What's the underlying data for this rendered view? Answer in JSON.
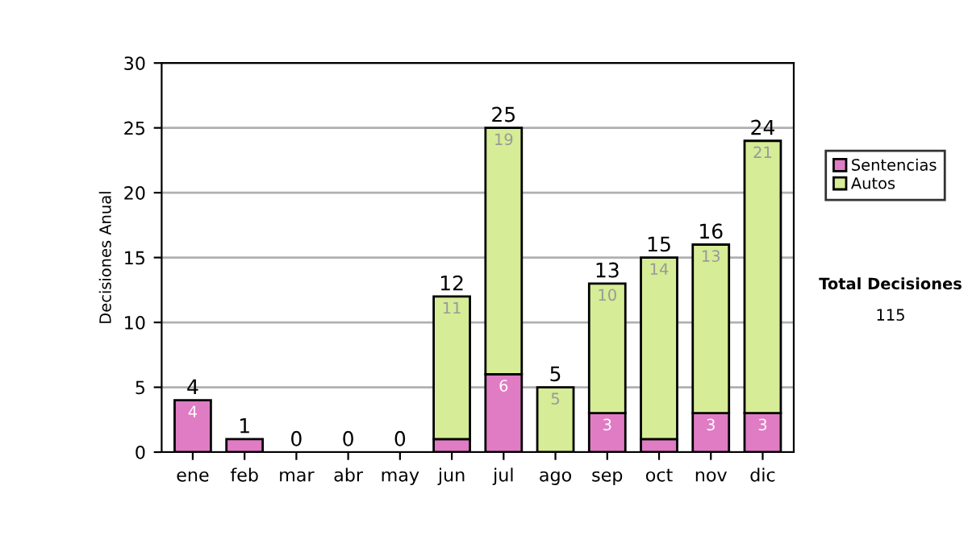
{
  "chart_data": {
    "type": "bar",
    "stacked": true,
    "ylabel": "Decisiones Anual",
    "categories": [
      "ene",
      "feb",
      "mar",
      "abr",
      "may",
      "jun",
      "jul",
      "ago",
      "sep",
      "oct",
      "nov",
      "dic"
    ],
    "series": [
      {
        "name": "Sentencias",
        "color": "#e07cc4",
        "values": [
          4,
          1,
          0,
          0,
          0,
          1,
          6,
          0,
          3,
          1,
          3,
          3
        ],
        "value_labels": [
          "4",
          null,
          null,
          null,
          null,
          null,
          "6",
          null,
          "3",
          null,
          "3",
          "3"
        ]
      },
      {
        "name": "Autos",
        "color": "#d6ec96",
        "values": [
          0,
          0,
          0,
          0,
          0,
          11,
          19,
          5,
          10,
          14,
          13,
          21
        ],
        "value_labels": [
          null,
          null,
          null,
          null,
          null,
          "11",
          "19",
          "5",
          "10",
          "14",
          "13",
          "21"
        ]
      }
    ],
    "totals": [
      "4",
      "1",
      "0",
      "0",
      "0",
      "12",
      "25",
      "5",
      "13",
      "15",
      "16",
      "24"
    ],
    "ylim": [
      0,
      30
    ],
    "yticks": [
      0,
      5,
      10,
      15,
      20,
      25,
      30
    ],
    "grid": "y",
    "legend": "right",
    "annotations": [
      "Total Decisiones",
      "115"
    ]
  }
}
